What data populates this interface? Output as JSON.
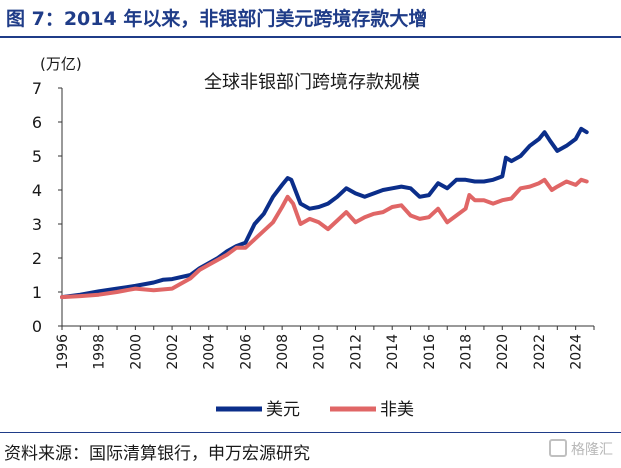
{
  "header": {
    "title": "图 7：2014 年以来，非银部门美元跨境存款大增"
  },
  "footer": {
    "source": "资料来源：国际清算银行，申万宏源研究",
    "watermark": "格隆汇"
  },
  "colors": {
    "header_blue": "#1f3c88",
    "usd": "#0b2e8a",
    "non_usd": "#e06666"
  },
  "chart_data": {
    "type": "line",
    "title": "全球非银部门跨境存款规模",
    "unit_label": "(万亿)",
    "xlabel": "",
    "ylabel": "",
    "xlim": [
      1996,
      2025
    ],
    "ylim": [
      0,
      7
    ],
    "x_ticks": [
      "1996",
      "1998",
      "2000",
      "2002",
      "2004",
      "2006",
      "2008",
      "2010",
      "2012",
      "2014",
      "2016",
      "2018",
      "2020",
      "2022",
      "2024"
    ],
    "y_ticks": [
      "0",
      "1",
      "2",
      "3",
      "4",
      "5",
      "6",
      "7"
    ],
    "grid": false,
    "legend_position": "bottom",
    "series": [
      {
        "name": "美元",
        "color": "#0b2e8a",
        "points": [
          [
            1996.0,
            0.85
          ],
          [
            1997.0,
            0.92
          ],
          [
            1998.0,
            1.02
          ],
          [
            1999.0,
            1.1
          ],
          [
            2000.0,
            1.18
          ],
          [
            2001.0,
            1.28
          ],
          [
            2001.5,
            1.36
          ],
          [
            2002.0,
            1.38
          ],
          [
            2003.0,
            1.5
          ],
          [
            2003.5,
            1.7
          ],
          [
            2004.0,
            1.85
          ],
          [
            2004.5,
            2.0
          ],
          [
            2005.0,
            2.2
          ],
          [
            2005.5,
            2.35
          ],
          [
            2006.0,
            2.45
          ],
          [
            2006.5,
            3.0
          ],
          [
            2007.0,
            3.3
          ],
          [
            2007.5,
            3.8
          ],
          [
            2008.0,
            4.15
          ],
          [
            2008.3,
            4.35
          ],
          [
            2008.5,
            4.3
          ],
          [
            2009.0,
            3.6
          ],
          [
            2009.5,
            3.45
          ],
          [
            2010.0,
            3.5
          ],
          [
            2010.5,
            3.6
          ],
          [
            2011.0,
            3.8
          ],
          [
            2011.5,
            4.05
          ],
          [
            2012.0,
            3.9
          ],
          [
            2012.5,
            3.8
          ],
          [
            2013.0,
            3.9
          ],
          [
            2013.5,
            4.0
          ],
          [
            2014.0,
            4.05
          ],
          [
            2014.5,
            4.1
          ],
          [
            2015.0,
            4.05
          ],
          [
            2015.5,
            3.8
          ],
          [
            2016.0,
            3.85
          ],
          [
            2016.5,
            4.2
          ],
          [
            2017.0,
            4.05
          ],
          [
            2017.5,
            4.3
          ],
          [
            2018.0,
            4.3
          ],
          [
            2018.5,
            4.25
          ],
          [
            2019.0,
            4.25
          ],
          [
            2019.5,
            4.3
          ],
          [
            2020.0,
            4.4
          ],
          [
            2020.2,
            4.95
          ],
          [
            2020.5,
            4.85
          ],
          [
            2021.0,
            5.0
          ],
          [
            2021.5,
            5.3
          ],
          [
            2022.0,
            5.5
          ],
          [
            2022.3,
            5.7
          ],
          [
            2022.6,
            5.45
          ],
          [
            2023.0,
            5.15
          ],
          [
            2023.5,
            5.3
          ],
          [
            2024.0,
            5.5
          ],
          [
            2024.3,
            5.8
          ],
          [
            2024.6,
            5.7
          ]
        ]
      },
      {
        "name": "非美",
        "color": "#e06666",
        "points": [
          [
            1996.0,
            0.85
          ],
          [
            1997.0,
            0.88
          ],
          [
            1998.0,
            0.92
          ],
          [
            1999.0,
            1.0
          ],
          [
            2000.0,
            1.1
          ],
          [
            2001.0,
            1.05
          ],
          [
            2002.0,
            1.1
          ],
          [
            2002.5,
            1.25
          ],
          [
            2003.0,
            1.4
          ],
          [
            2003.5,
            1.65
          ],
          [
            2004.0,
            1.8
          ],
          [
            2004.5,
            1.95
          ],
          [
            2005.0,
            2.1
          ],
          [
            2005.5,
            2.3
          ],
          [
            2006.0,
            2.3
          ],
          [
            2006.5,
            2.55
          ],
          [
            2007.0,
            2.8
          ],
          [
            2007.5,
            3.05
          ],
          [
            2008.0,
            3.5
          ],
          [
            2008.3,
            3.8
          ],
          [
            2008.6,
            3.6
          ],
          [
            2009.0,
            3.0
          ],
          [
            2009.5,
            3.15
          ],
          [
            2010.0,
            3.05
          ],
          [
            2010.5,
            2.85
          ],
          [
            2011.0,
            3.1
          ],
          [
            2011.5,
            3.35
          ],
          [
            2012.0,
            3.05
          ],
          [
            2012.5,
            3.2
          ],
          [
            2013.0,
            3.3
          ],
          [
            2013.5,
            3.35
          ],
          [
            2014.0,
            3.5
          ],
          [
            2014.5,
            3.55
          ],
          [
            2015.0,
            3.25
          ],
          [
            2015.5,
            3.15
          ],
          [
            2016.0,
            3.2
          ],
          [
            2016.5,
            3.45
          ],
          [
            2017.0,
            3.05
          ],
          [
            2017.5,
            3.25
          ],
          [
            2018.0,
            3.45
          ],
          [
            2018.2,
            3.85
          ],
          [
            2018.5,
            3.7
          ],
          [
            2019.0,
            3.7
          ],
          [
            2019.5,
            3.6
          ],
          [
            2020.0,
            3.7
          ],
          [
            2020.5,
            3.75
          ],
          [
            2021.0,
            4.05
          ],
          [
            2021.5,
            4.1
          ],
          [
            2022.0,
            4.2
          ],
          [
            2022.3,
            4.3
          ],
          [
            2022.7,
            4.0
          ],
          [
            2023.0,
            4.1
          ],
          [
            2023.5,
            4.25
          ],
          [
            2024.0,
            4.15
          ],
          [
            2024.3,
            4.3
          ],
          [
            2024.6,
            4.25
          ]
        ]
      }
    ]
  }
}
